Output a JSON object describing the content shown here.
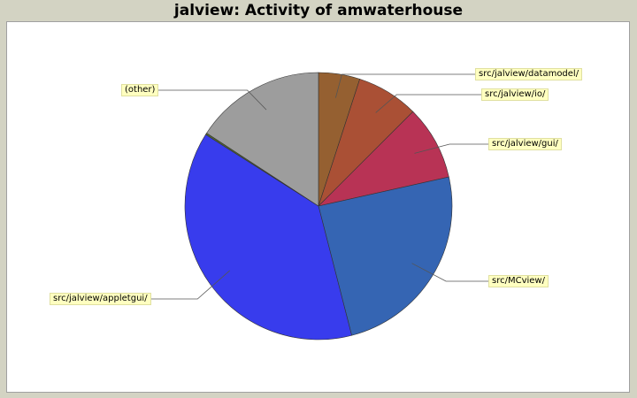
{
  "chart_data": {
    "type": "pie",
    "title": "jalview: Activity of amwaterhouse",
    "slices": [
      {
        "label": "src/jalview/datamodel/",
        "value": 5.0,
        "color": "#956031"
      },
      {
        "label": "src/jalview/io/",
        "value": 7.5,
        "color": "#aa5035"
      },
      {
        "label": "src/jalview/gui/",
        "value": 9.0,
        "color": "#b83355"
      },
      {
        "label": "src/MCview/",
        "value": 24.5,
        "color": "#3565b3"
      },
      {
        "label": "src/jalview/appletgui/",
        "value": 38.0,
        "color": "#383ced"
      },
      {
        "label": "",
        "value": 0.2,
        "color": "#556b2f"
      },
      {
        "label": "(other)",
        "value": 15.8,
        "color": "#9d9d9d"
      }
    ],
    "legend": "none"
  }
}
